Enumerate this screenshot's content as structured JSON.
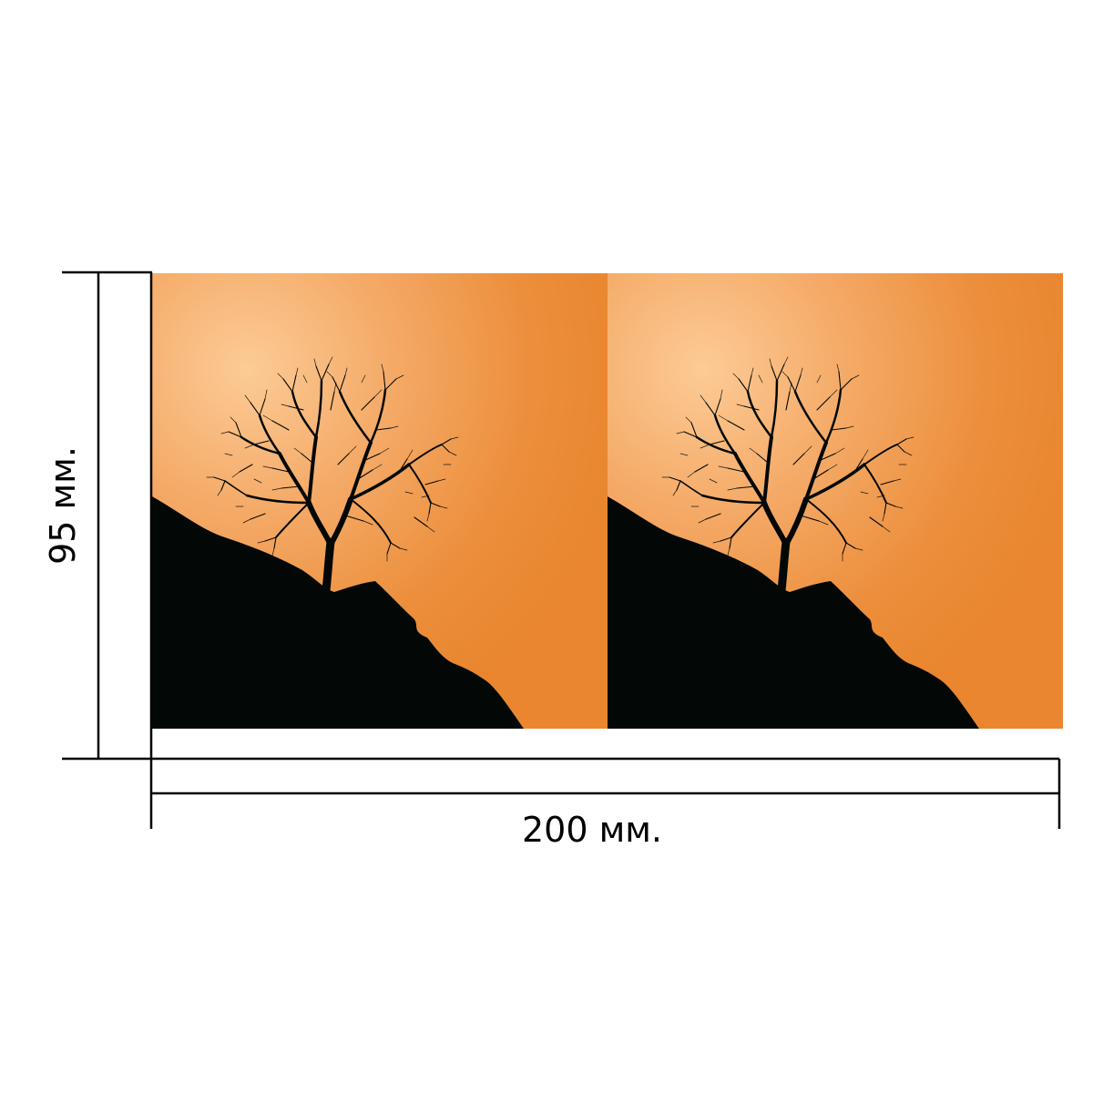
{
  "dimensions": {
    "width_label": "200 мм.",
    "height_label": "95 мм."
  },
  "colors": {
    "sky_base": "#E9862F",
    "sun_glow": "#FCCB96",
    "silhouette": "#030807",
    "dimension_line": "#000000"
  },
  "panels": [
    {
      "name": "left-panel",
      "scene": "tree-on-hill-silhouette"
    },
    {
      "name": "right-panel",
      "scene": "tree-on-hill-silhouette"
    }
  ]
}
